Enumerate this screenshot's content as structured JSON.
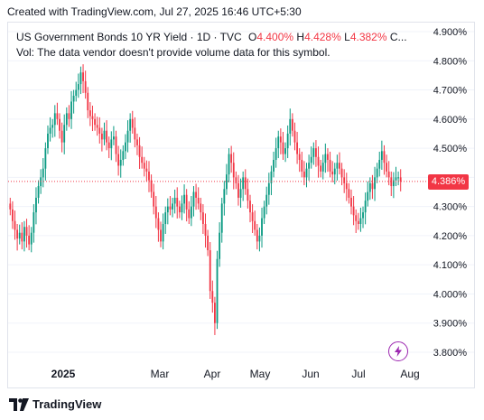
{
  "header": {
    "credit": "Created with TradingView.com, Jul 27, 2025 16:46 UTC+5:30"
  },
  "legend": {
    "symbol_title": "US Government Bonds 10 YR Yield · 1D · TVC",
    "open_label": "O",
    "open_value": "4.400%",
    "high_label": "H",
    "high_value": "4.428%",
    "low_label": "L",
    "low_value": "4.382%",
    "close_label": "C...",
    "volume_note": "Vol: The data vendor doesn't provide volume data for this symbol."
  },
  "price_axis": {
    "ticks": [
      "4.900%",
      "4.800%",
      "4.700%",
      "4.600%",
      "4.500%",
      "4.400%",
      "4.300%",
      "4.200%",
      "4.100%",
      "4.000%",
      "3.900%",
      "3.800%"
    ],
    "current_price": "4.386%"
  },
  "time_axis": {
    "labels": [
      "2025",
      "Mar",
      "Apr",
      "May",
      "Jun",
      "Jul",
      "Aug"
    ]
  },
  "footer": {
    "brand": "TradingView"
  },
  "colors": {
    "up": "#089981",
    "down": "#f23645",
    "grid": "#f0f3fa",
    "accent": "#9c27b0"
  },
  "icons": {
    "flash": "lightning-bolt-icon",
    "logo": "tradingview-logo-icon"
  },
  "chart_data": {
    "type": "candlestick",
    "title": "US Government Bonds 10 YR Yield · 1D · TVC",
    "ylim": [
      3.78,
      4.94
    ],
    "y_ticks": [
      4.9,
      4.8,
      4.7,
      4.6,
      4.5,
      4.4,
      4.3,
      4.2,
      4.1,
      4.0,
      3.9,
      3.8
    ],
    "current_value": 4.386,
    "closes": [
      4.29,
      4.25,
      4.22,
      4.19,
      4.21,
      4.18,
      4.23,
      4.2,
      4.17,
      4.21,
      4.28,
      4.33,
      4.37,
      4.4,
      4.43,
      4.5,
      4.55,
      4.57,
      4.58,
      4.62,
      4.6,
      4.56,
      4.52,
      4.58,
      4.62,
      4.6,
      4.66,
      4.68,
      4.7,
      4.72,
      4.76,
      4.73,
      4.69,
      4.63,
      4.61,
      4.6,
      4.58,
      4.57,
      4.55,
      4.53,
      4.56,
      4.52,
      4.5,
      4.53,
      4.54,
      4.48,
      4.44,
      4.46,
      4.49,
      4.52,
      4.56,
      4.6,
      4.57,
      4.53,
      4.51,
      4.47,
      4.45,
      4.43,
      4.42,
      4.39,
      4.35,
      4.3,
      4.26,
      4.22,
      4.18,
      4.24,
      4.28,
      4.3,
      4.29,
      4.31,
      4.33,
      4.3,
      4.28,
      4.31,
      4.34,
      4.29,
      4.26,
      4.3,
      4.35,
      4.33,
      4.31,
      4.28,
      4.24,
      4.2,
      4.15,
      4.01,
      3.97,
      3.9,
      4.12,
      4.21,
      4.31,
      4.36,
      4.41,
      4.48,
      4.45,
      4.4,
      4.38,
      4.33,
      4.36,
      4.4,
      4.36,
      4.32,
      4.28,
      4.25,
      4.22,
      4.18,
      4.2,
      4.26,
      4.3,
      4.34,
      4.38,
      4.42,
      4.46,
      4.5,
      4.54,
      4.52,
      4.48,
      4.5,
      4.55,
      4.6,
      4.56,
      4.52,
      4.48,
      4.46,
      4.42,
      4.4,
      4.43,
      4.45,
      4.47,
      4.5,
      4.47,
      4.44,
      4.42,
      4.45,
      4.48,
      4.46,
      4.42,
      4.41,
      4.43,
      4.45,
      4.43,
      4.4,
      4.38,
      4.36,
      4.33,
      4.3,
      4.27,
      4.25,
      4.24,
      4.26,
      4.28,
      4.32,
      4.35,
      4.38,
      4.36,
      4.4,
      4.43,
      4.46,
      4.49,
      4.45,
      4.42,
      4.4,
      4.37,
      4.39,
      4.4,
      4.4,
      4.386
    ]
  }
}
